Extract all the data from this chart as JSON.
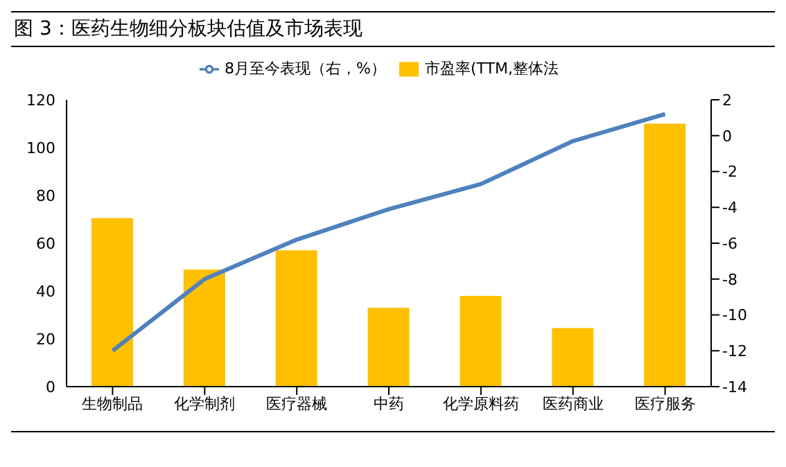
{
  "chart_data": {
    "type": "bar",
    "title": "图 3：医药生物细分板块估值及市场表现",
    "categories": [
      "生物制品",
      "化学制剂",
      "医疗器械",
      "中药",
      "化学原料药",
      "医药商业",
      "医疗服务"
    ],
    "series": [
      {
        "name": "市盈率(TTM,整体法",
        "color": "#ffc000",
        "values": [
          70.5,
          49,
          57,
          33,
          38,
          24.5,
          110
        ]
      },
      {
        "name": "8月至今表现（右，%）",
        "type": "line",
        "axis": "y2",
        "color": "#4f81bd",
        "values": [
          -12,
          -8,
          -5.8,
          -4.1,
          -2.7,
          -0.3,
          1.2
        ]
      }
    ],
    "ylim": [
      0,
      120
    ],
    "yticks": [
      0,
      20,
      40,
      60,
      80,
      100,
      120
    ],
    "y2lim": [
      -14,
      2
    ],
    "y2ticks": [
      -14,
      -12,
      -10,
      -8,
      -6,
      -4,
      -2,
      0,
      2
    ],
    "legend": "top",
    "marker": "none",
    "line_style": "solid"
  }
}
